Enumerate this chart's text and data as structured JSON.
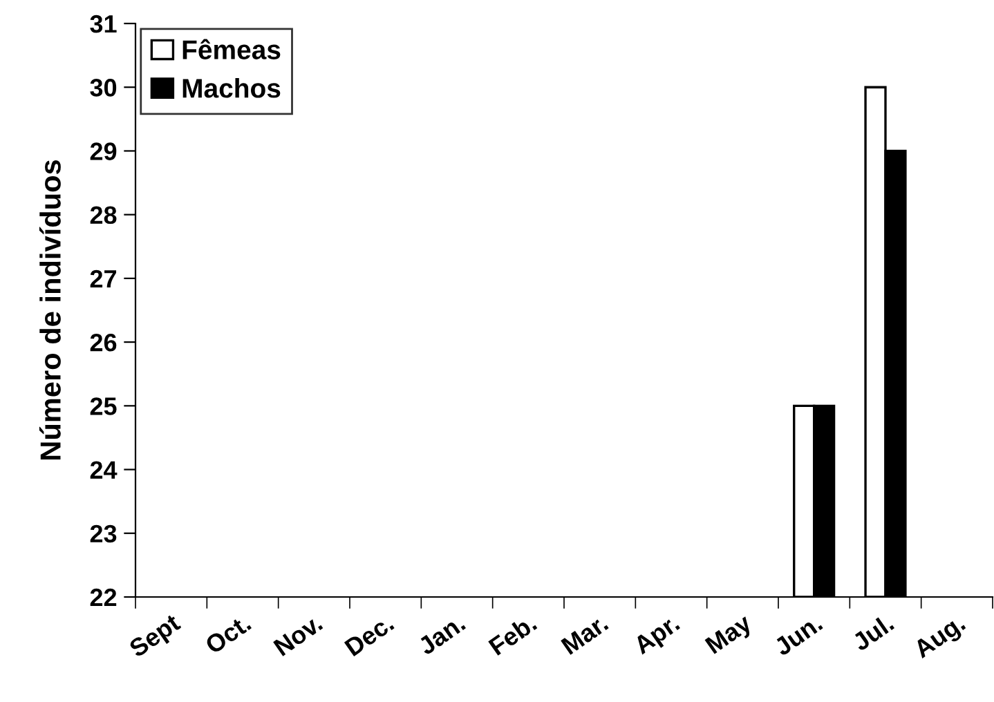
{
  "chart_data": {
    "type": "bar",
    "ylabel": "Número de indivíduos",
    "categories": [
      "Sept",
      "Oct.",
      "Nov.",
      "Dec.",
      "Jan.",
      "Feb.",
      "Mar.",
      "Apr.",
      "May",
      "Jun.",
      "Jul.",
      "Aug."
    ],
    "series": [
      {
        "name": "Fêmeas",
        "color": "#ffffff",
        "values": [
          null,
          null,
          null,
          null,
          null,
          null,
          null,
          null,
          null,
          25,
          30,
          null
        ]
      },
      {
        "name": "Machos",
        "color": "#000000",
        "values": [
          null,
          null,
          null,
          null,
          null,
          null,
          null,
          null,
          null,
          25,
          29,
          null
        ]
      }
    ],
    "ylim": [
      22,
      31
    ],
    "yticks": [
      22,
      23,
      24,
      25,
      26,
      27,
      28,
      29,
      30,
      31
    ],
    "grid": false,
    "legend": "top left"
  }
}
